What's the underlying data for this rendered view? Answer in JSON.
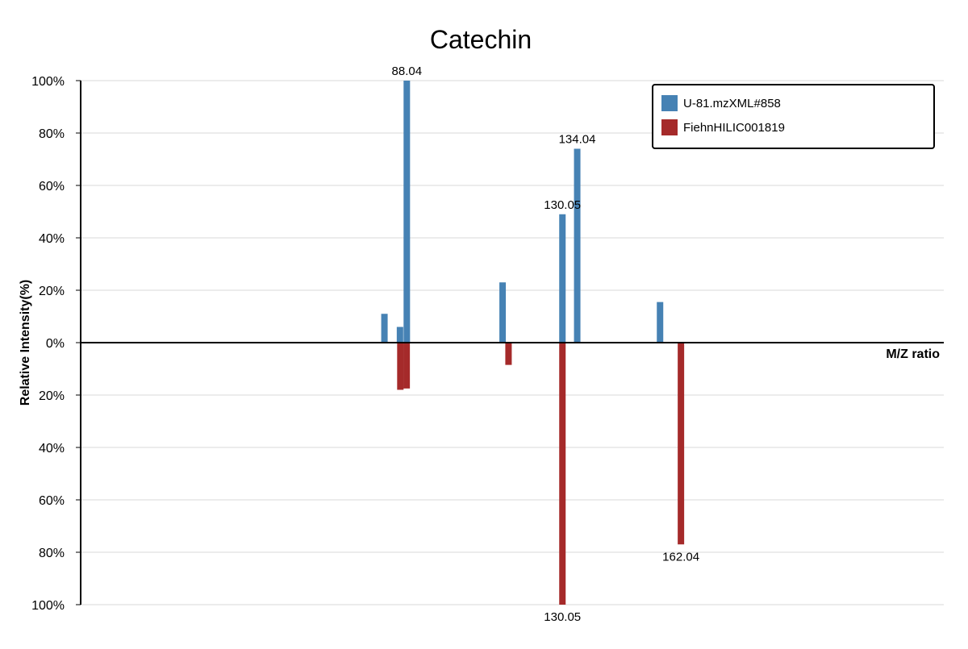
{
  "chart_data": {
    "type": "bar",
    "title": "Catechin",
    "xlabel": "M/Z ratio",
    "ylabel": "Relative Intensity(%)",
    "orientation": "mirrored",
    "ylim": [
      -100,
      100
    ],
    "xlim": [
      0,
      233
    ],
    "y_tick_labels": [
      "100%",
      "80%",
      "60%",
      "40%",
      "20%",
      "0%",
      "20%",
      "40%",
      "60%",
      "80%",
      "100%"
    ],
    "y_tick_values": [
      100,
      80,
      60,
      40,
      20,
      0,
      -20,
      -40,
      -60,
      -80,
      -100
    ],
    "grid": true,
    "legend_position": "top-right",
    "series": [
      {
        "name": "U-81.mzXML#858",
        "color": "#4682b4",
        "direction": "up",
        "points": [
          {
            "x": 82.0,
            "y": 11
          },
          {
            "x": 86.2,
            "y": 6
          },
          {
            "x": 88.04,
            "y": 100,
            "label": "88.04"
          },
          {
            "x": 113.9,
            "y": 23
          },
          {
            "x": 130.05,
            "y": 49,
            "label": "130.05"
          },
          {
            "x": 134.04,
            "y": 74,
            "label": "134.04"
          },
          {
            "x": 156.4,
            "y": 15.5
          }
        ]
      },
      {
        "name": "FiehnHILIC001819",
        "color": "#a52a2a",
        "direction": "down",
        "points": [
          {
            "x": 86.3,
            "y": 18
          },
          {
            "x": 88.0,
            "y": 17.5
          },
          {
            "x": 115.5,
            "y": 8.5
          },
          {
            "x": 130.05,
            "y": 100,
            "label": "130.05"
          },
          {
            "x": 162.04,
            "y": 77,
            "label": "162.04"
          }
        ]
      }
    ]
  }
}
